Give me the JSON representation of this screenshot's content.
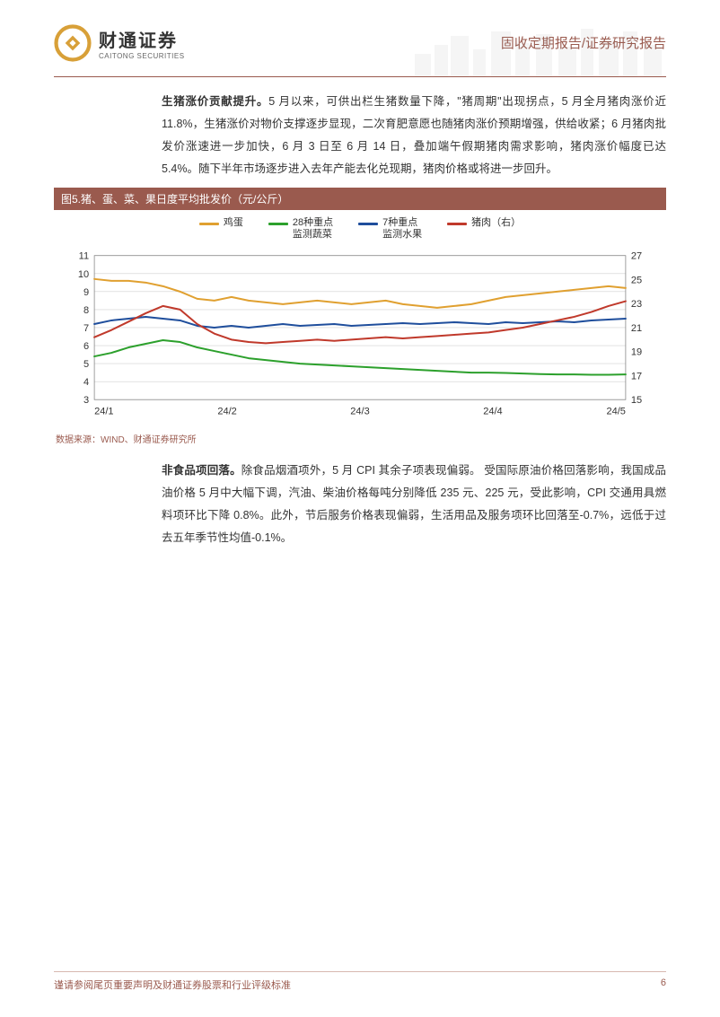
{
  "header": {
    "logo_cn": "财通证券",
    "logo_en": "CAITONG SECURITIES",
    "doc_type": "固收定期报告/证券研究报告"
  },
  "para1_bold": "生猪涨价贡献提升。",
  "para1_rest": "5 月以来，可供出栏生猪数量下降，\"猪周期\"出现拐点，5 月全月猪肉涨价近 11.8%，生猪涨价对物价支撑逐步显现，二次育肥意愿也随猪肉涨价预期增强，供给收紧；6 月猪肉批发价涨速进一步加快，6 月 3 日至 6 月 14 日，叠加端午假期猪肉需求影响，猪肉涨价幅度已达 5.4%。随下半年市场逐步进入去年产能去化兑现期，猪肉价格或将进一步回升。",
  "figure5": {
    "title": "图5.猪、蛋、菜、果日度平均批发价（元/公斤）",
    "data_source": "数据来源：WIND、财通证券研究所",
    "legend": [
      {
        "label": "鸡蛋",
        "color": "#e0a030"
      },
      {
        "label": "28种重点\n监测蔬菜",
        "color": "#2ca02c"
      },
      {
        "label": "7种重点\n监测水果",
        "color": "#1f4e9c"
      },
      {
        "label": "猪肉（右）",
        "color": "#c0392b"
      }
    ],
    "chart": {
      "type": "line",
      "x_ticks": [
        "24/1",
        "24/2",
        "24/3",
        "24/4",
        "24/5"
      ],
      "y_left": {
        "min": 3,
        "max": 11,
        "step": 1
      },
      "y_right": {
        "min": 15,
        "max": 27,
        "step": 2
      },
      "grid_color": "#d0d0d0",
      "background": "#ffffff",
      "series": {
        "egg": {
          "axis": "left",
          "color": "#e0a030",
          "width": 2,
          "values": [
            9.7,
            9.6,
            9.6,
            9.5,
            9.3,
            9.0,
            8.6,
            8.5,
            8.7,
            8.5,
            8.4,
            8.3,
            8.4,
            8.5,
            8.4,
            8.3,
            8.4,
            8.5,
            8.3,
            8.2,
            8.1,
            8.2,
            8.3,
            8.5,
            8.7,
            8.8,
            8.9,
            9.0,
            9.1,
            9.2,
            9.3,
            9.2
          ]
        },
        "veg": {
          "axis": "left",
          "color": "#2ca02c",
          "width": 2,
          "values": [
            5.4,
            5.6,
            5.9,
            6.1,
            6.3,
            6.2,
            5.9,
            5.7,
            5.5,
            5.3,
            5.2,
            5.1,
            5.0,
            4.95,
            4.9,
            4.85,
            4.8,
            4.75,
            4.7,
            4.65,
            4.6,
            4.55,
            4.5,
            4.5,
            4.48,
            4.45,
            4.42,
            4.4,
            4.4,
            4.38,
            4.38,
            4.4
          ]
        },
        "fruit": {
          "axis": "left",
          "color": "#1f4e9c",
          "width": 2,
          "values": [
            7.2,
            7.4,
            7.5,
            7.6,
            7.5,
            7.4,
            7.1,
            7.0,
            7.1,
            7.0,
            7.1,
            7.2,
            7.1,
            7.15,
            7.2,
            7.1,
            7.15,
            7.2,
            7.25,
            7.2,
            7.25,
            7.3,
            7.25,
            7.2,
            7.3,
            7.25,
            7.3,
            7.35,
            7.3,
            7.4,
            7.45,
            7.5
          ]
        },
        "pork": {
          "axis": "right",
          "color": "#c0392b",
          "width": 2,
          "values": [
            20.2,
            20.8,
            21.5,
            22.2,
            22.8,
            22.5,
            21.3,
            20.5,
            20.0,
            19.8,
            19.7,
            19.8,
            19.9,
            20.0,
            19.9,
            20.0,
            20.1,
            20.2,
            20.1,
            20.2,
            20.3,
            20.4,
            20.5,
            20.6,
            20.8,
            21.0,
            21.3,
            21.6,
            21.9,
            22.3,
            22.8,
            23.2
          ]
        }
      }
    }
  },
  "para2_bold": "非食品项回落。",
  "para2_rest": "除食品烟酒项外，5 月 CPI 其余子项表现偏弱。 受国际原油价格回落影响，我国成品油价格 5 月中大幅下调，汽油、柴油价格每吨分别降低 235 元、225 元，受此影响，CPI 交通用具燃料项环比下降 0.8%。此外，节后服务价格表现偏弱，生活用品及服务项环比回落至-0.7%，远低于过去五年季节性均值-0.1%。",
  "footer": {
    "disclaimer": "谨请参阅尾页重要声明及财通证券股票和行业评级标准",
    "page": "6"
  }
}
